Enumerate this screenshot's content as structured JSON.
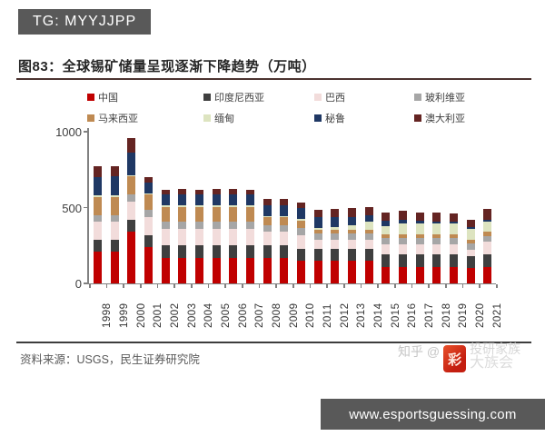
{
  "header": {
    "badge": "TG: MYYJJPP"
  },
  "figure": {
    "title": "图83：全球锡矿储量呈现逐渐下降趋势（万吨）",
    "source": "资料来源：USGS，民生证券研究院"
  },
  "watermark": {
    "prefix": "知乎 @",
    "seal_char": "彩",
    "line1": "投研家族",
    "line2": "大族会"
  },
  "footer_bar": {
    "url": "www.esportsguessing.com"
  },
  "chart_data": {
    "type": "bar",
    "stacked": true,
    "title": "图83：全球锡矿储量呈现逐渐下降趋势（万吨）",
    "xlabel": "",
    "ylabel": "万吨",
    "ylim": [
      0,
      1000
    ],
    "yticks": [
      0,
      500,
      1000
    ],
    "grid": false,
    "legend_position": "top",
    "categories": [
      1998,
      1999,
      2000,
      2001,
      2002,
      2003,
      2004,
      2005,
      2006,
      2007,
      2008,
      2009,
      2010,
      2011,
      2012,
      2013,
      2014,
      2015,
      2016,
      2017,
      2018,
      2019,
      2020,
      2021
    ],
    "series": [
      {
        "name": "中国",
        "color": "#c00000",
        "values": [
          210,
          210,
          340,
          240,
          170,
          170,
          170,
          170,
          170,
          170,
          170,
          170,
          150,
          150,
          150,
          150,
          150,
          110,
          110,
          110,
          110,
          110,
          100,
          110
        ]
      },
      {
        "name": "印度尼西亚",
        "color": "#3f3f3f",
        "values": [
          75,
          75,
          80,
          80,
          80,
          80,
          80,
          80,
          80,
          80,
          80,
          80,
          80,
          80,
          80,
          80,
          80,
          80,
          80,
          80,
          80,
          80,
          80,
          80
        ]
      },
      {
        "name": "巴西",
        "color": "#f2dcdb",
        "values": [
          120,
          120,
          120,
          120,
          110,
          110,
          110,
          110,
          110,
          110,
          90,
          90,
          90,
          59,
          59,
          59,
          59,
          70,
          70,
          70,
          70,
          70,
          42,
          84
        ]
      },
      {
        "name": "玻利维亚",
        "color": "#a6a6a6",
        "values": [
          45,
          45,
          45,
          45,
          45,
          45,
          45,
          45,
          45,
          45,
          45,
          45,
          45,
          40,
          40,
          40,
          40,
          40,
          40,
          40,
          40,
          40,
          40,
          40
        ]
      },
      {
        "name": "马来西亚",
        "color": "#bf8a52",
        "values": [
          120,
          120,
          120,
          100,
          100,
          100,
          100,
          100,
          100,
          100,
          50,
          50,
          50,
          25,
          25,
          25,
          25,
          25,
          25,
          25,
          25,
          25,
          25,
          25
        ]
      },
      {
        "name": "缅甸",
        "color": "#dde4c0",
        "values": [
          10,
          10,
          10,
          10,
          10,
          10,
          10,
          10,
          10,
          10,
          10,
          10,
          10,
          10,
          19,
          30,
          55,
          55,
          70,
          70,
          70,
          70,
          70,
          70
        ]
      },
      {
        "name": "秘鲁",
        "color": "#1f3864",
        "values": [
          120,
          125,
          150,
          70,
          70,
          75,
          70,
          75,
          75,
          70,
          71,
          70,
          71,
          71,
          63,
          55,
          40,
          33,
          25,
          18,
          15,
          15,
          13,
          13
        ]
      },
      {
        "name": "澳大利亚",
        "color": "#642422",
        "values": [
          70,
          70,
          95,
          35,
          35,
          35,
          35,
          35,
          35,
          35,
          40,
          40,
          40,
          53,
          57,
          57,
          57,
          57,
          57,
          57,
          57,
          50,
          50,
          68
        ]
      }
    ]
  }
}
